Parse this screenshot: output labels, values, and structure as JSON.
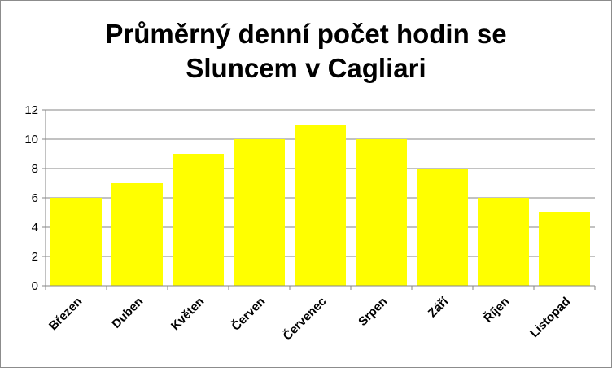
{
  "chart_data": {
    "type": "bar",
    "title_line1": "Průměrný denní počet hodin se",
    "title_line2": "Sluncem v Cagliari",
    "categories": [
      "Březen",
      "Duben",
      "Květen",
      "Červen",
      "Červenec",
      "Srpen",
      "Září",
      "Říjen",
      "Listopad"
    ],
    "values": [
      6,
      7,
      9,
      10,
      11,
      10,
      8,
      6,
      5
    ],
    "ylim": [
      0,
      12
    ],
    "yticks": [
      0,
      2,
      4,
      6,
      8,
      10,
      12
    ],
    "grid": true,
    "legend": "none",
    "bar_color": "#ffff00",
    "grid_color": "#868686",
    "axis_color": "#868686"
  }
}
